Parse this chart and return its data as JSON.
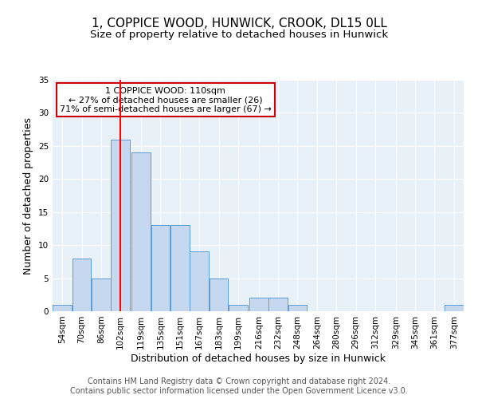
{
  "title": "1, COPPICE WOOD, HUNWICK, CROOK, DL15 0LL",
  "subtitle": "Size of property relative to detached houses in Hunwick",
  "xlabel": "Distribution of detached houses by size in Hunwick",
  "ylabel": "Number of detached properties",
  "bin_edges": [
    54,
    70,
    86,
    102,
    119,
    135,
    151,
    167,
    183,
    199,
    216,
    232,
    248,
    264,
    280,
    296,
    312,
    329,
    345,
    361,
    377
  ],
  "bar_heights": [
    1,
    8,
    5,
    26,
    24,
    13,
    13,
    9,
    5,
    1,
    2,
    2,
    1,
    0,
    0,
    0,
    0,
    0,
    0,
    0,
    1
  ],
  "bar_color": "#c5d8f0",
  "bar_edge_color": "#5b9bd5",
  "red_line_x": 110,
  "annotation_line1": "1 COPPICE WOOD: 110sqm",
  "annotation_line2": "← 27% of detached houses are smaller (26)",
  "annotation_line3": "71% of semi-detached houses are larger (67) →",
  "annotation_box_color": "#ffffff",
  "annotation_box_edge": "#cc0000",
  "ylim": [
    0,
    35
  ],
  "yticks": [
    0,
    5,
    10,
    15,
    20,
    25,
    30,
    35
  ],
  "tick_labels": [
    "54sqm",
    "70sqm",
    "86sqm",
    "102sqm",
    "119sqm",
    "135sqm",
    "151sqm",
    "167sqm",
    "183sqm",
    "199sqm",
    "216sqm",
    "232sqm",
    "248sqm",
    "264sqm",
    "280sqm",
    "296sqm",
    "312sqm",
    "329sqm",
    "345sqm",
    "361sqm",
    "377sqm"
  ],
  "background_color": "#e8f0f8",
  "footer_text": "Contains HM Land Registry data © Crown copyright and database right 2024.\nContains public sector information licensed under the Open Government Licence v3.0.",
  "title_fontsize": 11,
  "subtitle_fontsize": 9.5,
  "axis_label_fontsize": 9,
  "tick_fontsize": 7.5,
  "footer_fontsize": 7,
  "ann_fontsize": 8
}
